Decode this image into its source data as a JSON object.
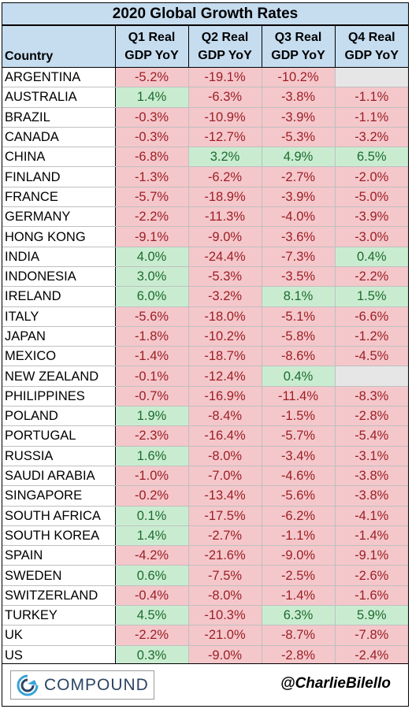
{
  "chart_data": {
    "type": "table",
    "title": "2020 Global Growth Rates",
    "columns": [
      "Country",
      "Q1 Real GDP YoY",
      "Q2 Real GDP YoY",
      "Q3 Real GDP YoY",
      "Q4 Real GDP YoY"
    ],
    "header_lines": [
      [
        "",
        "Country"
      ],
      [
        "Q1 Real",
        "GDP YoY"
      ],
      [
        "Q2 Real",
        "GDP YoY"
      ],
      [
        "Q3 Real",
        "GDP YoY"
      ],
      [
        "Q4 Real",
        "GDP YoY"
      ]
    ],
    "rows": [
      [
        "ARGENTINA",
        "-5.2%",
        "-19.1%",
        "-10.2%",
        ""
      ],
      [
        "AUSTRALIA",
        "1.4%",
        "-6.3%",
        "-3.8%",
        "-1.1%"
      ],
      [
        "BRAZIL",
        "-0.3%",
        "-10.9%",
        "-3.9%",
        "-1.1%"
      ],
      [
        "CANADA",
        "-0.3%",
        "-12.7%",
        "-5.3%",
        "-3.2%"
      ],
      [
        "CHINA",
        "-6.8%",
        "3.2%",
        "4.9%",
        "6.5%"
      ],
      [
        "FINLAND",
        "-1.3%",
        "-6.2%",
        "-2.7%",
        "-2.0%"
      ],
      [
        "FRANCE",
        "-5.7%",
        "-18.9%",
        "-3.9%",
        "-5.0%"
      ],
      [
        "GERMANY",
        "-2.2%",
        "-11.3%",
        "-4.0%",
        "-3.9%"
      ],
      [
        "HONG KONG",
        "-9.1%",
        "-9.0%",
        "-3.6%",
        "-3.0%"
      ],
      [
        "INDIA",
        "4.0%",
        "-24.4%",
        "-7.3%",
        "0.4%"
      ],
      [
        "INDONESIA",
        "3.0%",
        "-5.3%",
        "-3.5%",
        "-2.2%"
      ],
      [
        "IRELAND",
        "6.0%",
        "-3.2%",
        "8.1%",
        "1.5%"
      ],
      [
        "ITALY",
        "-5.6%",
        "-18.0%",
        "-5.1%",
        "-6.6%"
      ],
      [
        "JAPAN",
        "-1.8%",
        "-10.2%",
        "-5.8%",
        "-1.2%"
      ],
      [
        "MEXICO",
        "-1.4%",
        "-18.7%",
        "-8.6%",
        "-4.5%"
      ],
      [
        "NEW ZEALAND",
        "-0.1%",
        "-12.4%",
        "0.4%",
        ""
      ],
      [
        "PHILIPPINES",
        "-0.7%",
        "-16.9%",
        "-11.4%",
        "-8.3%"
      ],
      [
        "POLAND",
        "1.9%",
        "-8.4%",
        "-1.5%",
        "-2.8%"
      ],
      [
        "PORTUGAL",
        "-2.3%",
        "-16.4%",
        "-5.7%",
        "-5.4%"
      ],
      [
        "RUSSIA",
        "1.6%",
        "-8.0%",
        "-3.4%",
        "-3.1%"
      ],
      [
        "SAUDI ARABIA",
        "-1.0%",
        "-7.0%",
        "-4.6%",
        "-3.8%"
      ],
      [
        "SINGAPORE",
        "-0.2%",
        "-13.4%",
        "-5.6%",
        "-3.8%"
      ],
      [
        "SOUTH AFRICA",
        "0.1%",
        "-17.5%",
        "-6.2%",
        "-4.1%"
      ],
      [
        "SOUTH KOREA",
        "1.4%",
        "-2.7%",
        "-1.1%",
        "-1.4%"
      ],
      [
        "SPAIN",
        "-4.2%",
        "-21.6%",
        "-9.0%",
        "-9.1%"
      ],
      [
        "SWEDEN",
        "0.6%",
        "-7.5%",
        "-2.5%",
        "-2.6%"
      ],
      [
        "SWITZERLAND",
        "-0.4%",
        "-8.0%",
        "-1.4%",
        "-1.6%"
      ],
      [
        "TURKEY",
        "4.5%",
        "-10.3%",
        "6.3%",
        "5.9%"
      ],
      [
        "UK",
        "-2.2%",
        "-21.0%",
        "-8.7%",
        "-7.8%"
      ],
      [
        "US",
        "0.3%",
        "-9.0%",
        "-2.8%",
        "-2.4%"
      ]
    ]
  },
  "footer": {
    "logo_text": "COMPOUND",
    "logo_icon": "compound-logo-icon",
    "handle": "@CharlieBilello"
  },
  "colors": {
    "header_bg": "#c6ddf0",
    "negative_bg": "#f4c7cb",
    "negative_text": "#9c1f24",
    "positive_bg": "#c9ecd0",
    "positive_text": "#1d6b2e",
    "empty_bg": "#e6e6e6"
  }
}
